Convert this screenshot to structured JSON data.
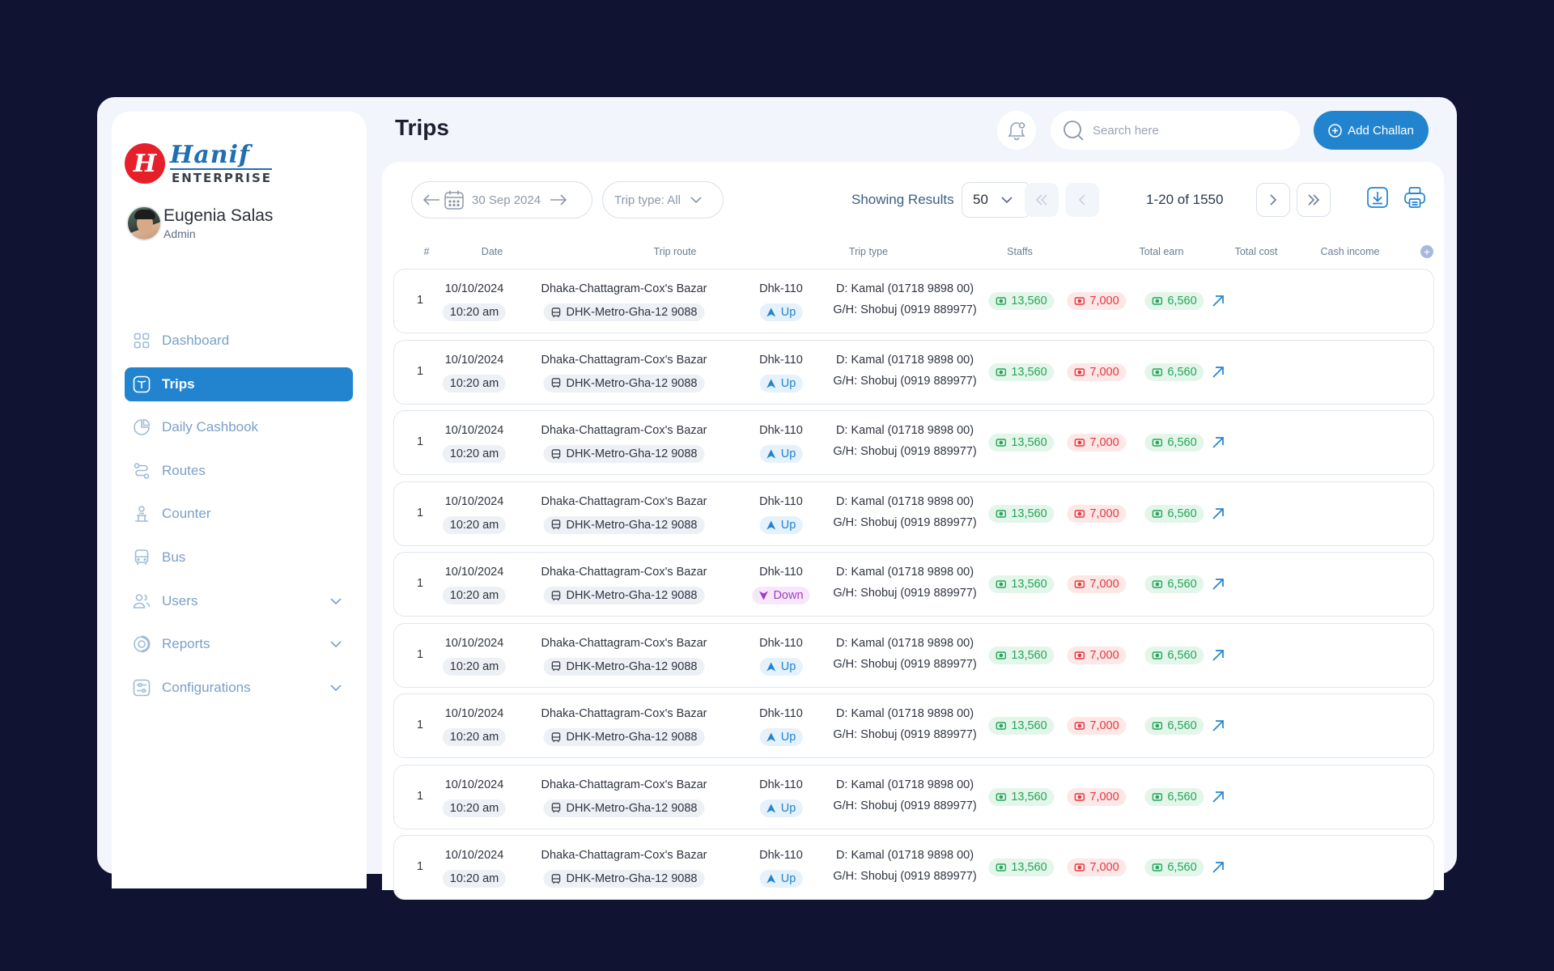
{
  "brand": {
    "logo_mark": "H",
    "name": "Hanif",
    "sub": "ENTERPRISE"
  },
  "user": {
    "name": "Eugenia Salas",
    "role": "Admin"
  },
  "nav": [
    {
      "label": "Dashboard",
      "icon": "grid-icon",
      "active": false
    },
    {
      "label": "Trips",
      "icon": "trip-icon",
      "active": true
    },
    {
      "label": "Daily Cashbook",
      "icon": "pie-icon",
      "active": false
    },
    {
      "label": "Routes",
      "icon": "route-icon",
      "active": false
    },
    {
      "label": "Counter",
      "icon": "counter-icon",
      "active": false
    },
    {
      "label": "Bus",
      "icon": "bus-icon",
      "active": false
    },
    {
      "label": "Users",
      "icon": "users-icon",
      "active": false,
      "expandable": true
    },
    {
      "label": "Reports",
      "icon": "reports-icon",
      "active": false,
      "expandable": true
    },
    {
      "label": "Configurations",
      "icon": "sliders-icon",
      "active": false,
      "expandable": true
    }
  ],
  "header": {
    "title": "Trips",
    "search_placeholder": "Search here",
    "search_value": "",
    "add_button": "Add Challan"
  },
  "toolbar": {
    "date": "30 Sep 2024",
    "trip_type": "Trip type: All",
    "showing_label": "Showing Results",
    "per_page": "50",
    "page_range": "1-20 of 1550"
  },
  "table": {
    "columns": [
      "#",
      "Date",
      "Trip route",
      "Trip type",
      "Staffs",
      "Total earn",
      "Total cost",
      "Cash income"
    ],
    "rows": [
      {
        "num": "1",
        "date": "10/10/2024",
        "time": "10:20 am",
        "route": "Dhaka-Chattagram-Cox's Bazar",
        "bus": "DHK-Metro-Gha-12 9088",
        "trip_code": "Dhk-110",
        "direction": "Up",
        "driver": "D: Kamal (01718 9898 00)",
        "helper": "G/H: Shobuj (0919 889977)",
        "earn": "13,560",
        "cost": "7,000",
        "income": "6,560"
      },
      {
        "num": "1",
        "date": "10/10/2024",
        "time": "10:20 am",
        "route": "Dhaka-Chattagram-Cox's Bazar",
        "bus": "DHK-Metro-Gha-12 9088",
        "trip_code": "Dhk-110",
        "direction": "Up",
        "driver": "D: Kamal (01718 9898 00)",
        "helper": "G/H: Shobuj (0919 889977)",
        "earn": "13,560",
        "cost": "7,000",
        "income": "6,560"
      },
      {
        "num": "1",
        "date": "10/10/2024",
        "time": "10:20 am",
        "route": "Dhaka-Chattagram-Cox's Bazar",
        "bus": "DHK-Metro-Gha-12 9088",
        "trip_code": "Dhk-110",
        "direction": "Up",
        "driver": "D: Kamal (01718 9898 00)",
        "helper": "G/H: Shobuj (0919 889977)",
        "earn": "13,560",
        "cost": "7,000",
        "income": "6,560"
      },
      {
        "num": "1",
        "date": "10/10/2024",
        "time": "10:20 am",
        "route": "Dhaka-Chattagram-Cox's Bazar",
        "bus": "DHK-Metro-Gha-12 9088",
        "trip_code": "Dhk-110",
        "direction": "Up",
        "driver": "D: Kamal (01718 9898 00)",
        "helper": "G/H: Shobuj (0919 889977)",
        "earn": "13,560",
        "cost": "7,000",
        "income": "6,560"
      },
      {
        "num": "1",
        "date": "10/10/2024",
        "time": "10:20 am",
        "route": "Dhaka-Chattagram-Cox's Bazar",
        "bus": "DHK-Metro-Gha-12 9088",
        "trip_code": "Dhk-110",
        "direction": "Down",
        "driver": "D: Kamal (01718 9898 00)",
        "helper": "G/H: Shobuj (0919 889977)",
        "earn": "13,560",
        "cost": "7,000",
        "income": "6,560"
      },
      {
        "num": "1",
        "date": "10/10/2024",
        "time": "10:20 am",
        "route": "Dhaka-Chattagram-Cox's Bazar",
        "bus": "DHK-Metro-Gha-12 9088",
        "trip_code": "Dhk-110",
        "direction": "Up",
        "driver": "D: Kamal (01718 9898 00)",
        "helper": "G/H: Shobuj (0919 889977)",
        "earn": "13,560",
        "cost": "7,000",
        "income": "6,560"
      },
      {
        "num": "1",
        "date": "10/10/2024",
        "time": "10:20 am",
        "route": "Dhaka-Chattagram-Cox's Bazar",
        "bus": "DHK-Metro-Gha-12 9088",
        "trip_code": "Dhk-110",
        "direction": "Up",
        "driver": "D: Kamal (01718 9898 00)",
        "helper": "G/H: Shobuj (0919 889977)",
        "earn": "13,560",
        "cost": "7,000",
        "income": "6,560"
      },
      {
        "num": "1",
        "date": "10/10/2024",
        "time": "10:20 am",
        "route": "Dhaka-Chattagram-Cox's Bazar",
        "bus": "DHK-Metro-Gha-12 9088",
        "trip_code": "Dhk-110",
        "direction": "Up",
        "driver": "D: Kamal (01718 9898 00)",
        "helper": "G/H: Shobuj (0919 889977)",
        "earn": "13,560",
        "cost": "7,000",
        "income": "6,560"
      },
      {
        "num": "1",
        "date": "10/10/2024",
        "time": "10:20 am",
        "route": "Dhaka-Chattagram-Cox's Bazar",
        "bus": "DHK-Metro-Gha-12 9088",
        "trip_code": "Dhk-110",
        "direction": "Up",
        "driver": "D: Kamal (01718 9898 00)",
        "helper": "G/H: Shobuj (0919 889977)",
        "earn": "13,560",
        "cost": "7,000",
        "income": "6,560"
      }
    ]
  },
  "colors": {
    "accent": "#2284cf",
    "earn": "#23a55a",
    "cost": "#e0393e",
    "down": "#a43ac3",
    "background": "#101432"
  }
}
